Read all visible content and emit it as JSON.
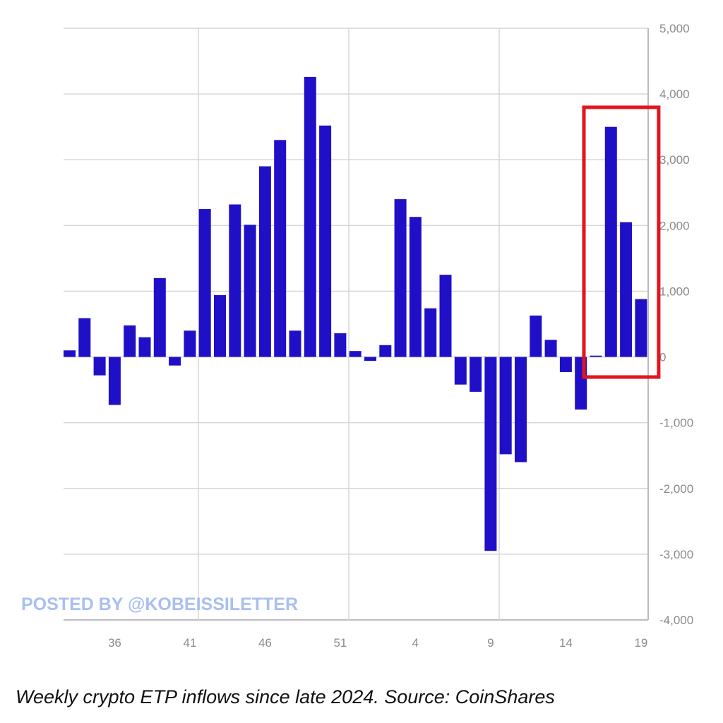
{
  "chart_data": {
    "type": "bar",
    "title": "",
    "xlabel": "",
    "ylabel": "",
    "ylim": [
      -4000,
      5000
    ],
    "y_ticks": [
      5000,
      4000,
      3000,
      2000,
      1000,
      0,
      -1000,
      -2000,
      -3000,
      -4000
    ],
    "y_tick_labels": [
      "5,000",
      "4,000",
      "3,000",
      "2,000",
      "1,000",
      "0",
      "-1,000",
      "-2,000",
      "-3,000",
      "-4,000"
    ],
    "x_tick_labels": [
      "36",
      "41",
      "46",
      "51",
      "4",
      "9",
      "14",
      "19"
    ],
    "grid": true,
    "bar_color": "#1f10c8",
    "categories": [
      "33",
      "34",
      "35",
      "36",
      "37",
      "38",
      "39",
      "40",
      "41",
      "42",
      "43",
      "44",
      "45",
      "46",
      "47",
      "48",
      "49",
      "50",
      "51",
      "52",
      "1",
      "2",
      "3",
      "4",
      "5",
      "6",
      "7",
      "8",
      "9",
      "10",
      "11",
      "12",
      "13",
      "14",
      "15",
      "16",
      "17",
      "18",
      "19"
    ],
    "values": [
      100,
      590,
      -280,
      -730,
      480,
      300,
      1200,
      -130,
      400,
      2250,
      940,
      2320,
      2010,
      2900,
      3300,
      400,
      4260,
      3520,
      360,
      90,
      -60,
      180,
      2400,
      2130,
      740,
      1250,
      -420,
      -530,
      -2950,
      -1480,
      -1600,
      630,
      260,
      -230,
      -800,
      20,
      3500,
      2050,
      880
    ],
    "highlight": {
      "from": "16",
      "to": "19",
      "color": "#e0161e"
    },
    "watermark": "POSTED BY @KOBEISSILETTER"
  },
  "caption": "Weekly crypto ETP inflows since late 2024. Source: CoinShares"
}
